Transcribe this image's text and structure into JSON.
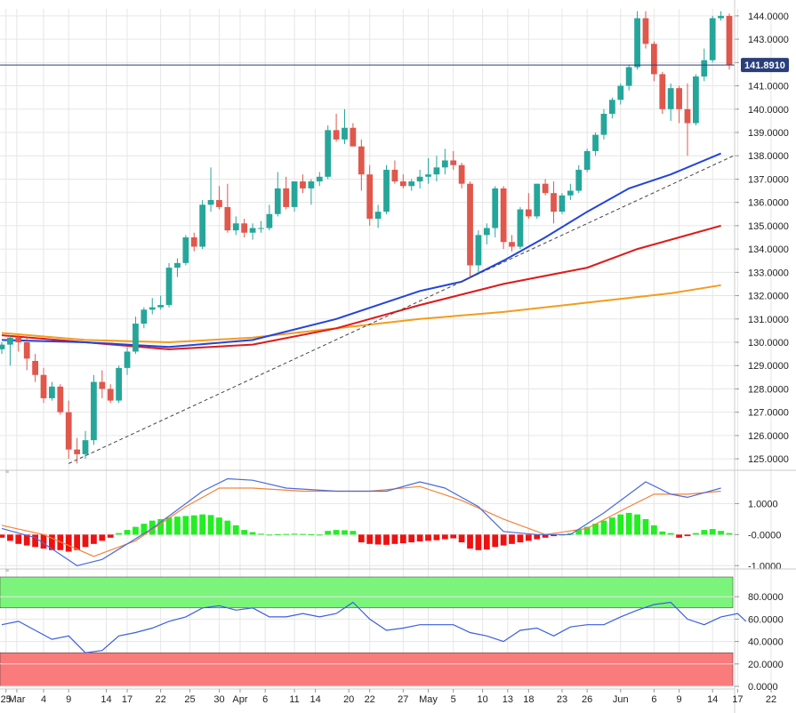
{
  "chart_data": [
    {
      "type": "candlestick",
      "name": "price",
      "y_ticks": [
        "125.0000",
        "126.0000",
        "127.0000",
        "128.0000",
        "129.0000",
        "130.0000",
        "131.0000",
        "132.0000",
        "133.0000",
        "134.0000",
        "135.0000",
        "136.0000",
        "137.0000",
        "138.0000",
        "139.0000",
        "140.0000",
        "141.0000",
        "142.0000",
        "143.0000",
        "144.0000"
      ],
      "ylim": [
        124.7,
        144.3
      ],
      "current_price": 141.891,
      "current_price_label": "141.8910",
      "x_labels": [
        "25",
        "Mar",
        "4",
        "9",
        "14",
        "17",
        "22",
        "25",
        "30",
        "Apr",
        "6",
        "11",
        "14",
        "20",
        "22",
        "27",
        "May",
        "5",
        "10",
        "13",
        "18",
        "23",
        "26",
        "Jun",
        "6",
        "9",
        "14",
        "17",
        "22"
      ],
      "candles": [
        [
          129.7,
          130.0,
          129.5,
          129.9
        ],
        [
          129.9,
          130.3,
          129.0,
          130.2
        ],
        [
          130.2,
          130.3,
          129.6,
          130.0
        ],
        [
          130.0,
          130.2,
          128.8,
          129.3
        ],
        [
          129.2,
          129.5,
          128.3,
          128.6
        ],
        [
          128.6,
          128.9,
          127.4,
          127.6
        ],
        [
          127.6,
          128.3,
          127.5,
          128.1
        ],
        [
          128.1,
          128.2,
          126.9,
          127.0
        ],
        [
          127.0,
          127.5,
          125.0,
          125.4
        ],
        [
          125.4,
          125.9,
          124.8,
          125.2
        ],
        [
          125.2,
          126.2,
          125.0,
          125.8
        ],
        [
          125.8,
          128.6,
          125.6,
          128.3
        ],
        [
          128.3,
          128.8,
          127.6,
          128.0
        ],
        [
          128.0,
          128.2,
          127.4,
          127.5
        ],
        [
          127.5,
          129.0,
          127.4,
          128.9
        ],
        [
          128.9,
          129.8,
          128.6,
          129.6
        ],
        [
          129.6,
          131.1,
          129.5,
          130.8
        ],
        [
          130.8,
          131.5,
          130.6,
          131.4
        ],
        [
          131.4,
          131.9,
          131.2,
          131.5
        ],
        [
          131.5,
          132.0,
          131.4,
          131.6
        ],
        [
          131.6,
          133.4,
          131.5,
          133.2
        ],
        [
          133.2,
          133.6,
          132.8,
          133.4
        ],
        [
          133.4,
          134.6,
          133.3,
          134.5
        ],
        [
          134.5,
          134.7,
          133.9,
          134.1
        ],
        [
          134.1,
          136.1,
          134.0,
          135.9
        ],
        [
          135.9,
          137.5,
          135.6,
          136.1
        ],
        [
          136.1,
          136.7,
          135.7,
          135.8
        ],
        [
          135.8,
          136.8,
          134.7,
          134.8
        ],
        [
          134.8,
          135.4,
          134.6,
          135.1
        ],
        [
          135.1,
          135.3,
          134.5,
          134.7
        ],
        [
          134.7,
          135.1,
          134.4,
          134.9
        ],
        [
          134.9,
          135.2,
          134.7,
          134.9
        ],
        [
          134.9,
          135.9,
          134.8,
          135.5
        ],
        [
          135.5,
          137.3,
          135.4,
          136.6
        ],
        [
          136.6,
          137.1,
          135.7,
          135.8
        ],
        [
          135.8,
          136.9,
          135.6,
          136.9
        ],
        [
          136.9,
          137.2,
          136.4,
          136.6
        ],
        [
          136.6,
          137.0,
          135.9,
          136.9
        ],
        [
          136.9,
          137.3,
          136.7,
          137.1
        ],
        [
          137.1,
          139.3,
          137.0,
          139.1
        ],
        [
          139.1,
          139.8,
          138.6,
          138.7
        ],
        [
          138.7,
          140.0,
          138.5,
          139.2
        ],
        [
          139.2,
          139.4,
          138.5,
          138.4
        ],
        [
          138.4,
          138.7,
          136.5,
          137.2
        ],
        [
          137.2,
          137.6,
          135.0,
          135.3
        ],
        [
          135.3,
          135.9,
          134.9,
          135.6
        ],
        [
          135.6,
          137.6,
          135.5,
          137.4
        ],
        [
          137.4,
          137.8,
          136.8,
          136.9
        ],
        [
          136.9,
          137.2,
          136.6,
          136.7
        ],
        [
          136.7,
          137.0,
          136.5,
          136.9
        ],
        [
          136.9,
          137.4,
          136.6,
          137.1
        ],
        [
          137.1,
          137.9,
          136.8,
          137.2
        ],
        [
          137.2,
          138.0,
          136.9,
          137.5
        ],
        [
          137.5,
          138.3,
          137.2,
          137.8
        ],
        [
          137.8,
          138.2,
          137.4,
          137.6
        ],
        [
          137.6,
          137.7,
          136.6,
          136.8
        ],
        [
          136.8,
          136.9,
          132.8,
          133.3
        ],
        [
          133.3,
          134.8,
          133.0,
          134.6
        ],
        [
          134.6,
          135.1,
          134.2,
          134.9
        ],
        [
          134.9,
          136.7,
          134.5,
          136.6
        ],
        [
          136.6,
          136.7,
          134.0,
          134.3
        ],
        [
          134.3,
          134.6,
          133.9,
          134.1
        ],
        [
          134.1,
          135.8,
          134.0,
          135.7
        ],
        [
          135.7,
          136.4,
          135.3,
          135.4
        ],
        [
          135.4,
          136.8,
          135.3,
          136.8
        ],
        [
          136.8,
          137.0,
          136.3,
          136.4
        ],
        [
          136.4,
          136.9,
          135.1,
          135.6
        ],
        [
          135.6,
          136.4,
          135.5,
          136.3
        ],
        [
          136.3,
          136.8,
          136.1,
          136.5
        ],
        [
          136.5,
          137.6,
          136.4,
          137.4
        ],
        [
          137.4,
          138.3,
          137.3,
          138.2
        ],
        [
          138.2,
          139.0,
          138.0,
          138.9
        ],
        [
          138.9,
          140.0,
          138.7,
          139.8
        ],
        [
          139.8,
          140.5,
          139.6,
          140.4
        ],
        [
          140.4,
          141.1,
          140.2,
          141.0
        ],
        [
          141.0,
          141.9,
          140.8,
          141.8
        ],
        [
          141.8,
          144.2,
          141.7,
          143.9
        ],
        [
          143.9,
          144.2,
          142.6,
          142.8
        ],
        [
          142.8,
          142.9,
          141.2,
          141.5
        ],
        [
          141.5,
          141.6,
          139.8,
          140.0
        ],
        [
          140.0,
          141.1,
          139.5,
          140.9
        ],
        [
          140.9,
          141.0,
          139.4,
          140.0
        ],
        [
          140.0,
          141.1,
          138.0,
          139.4
        ],
        [
          139.4,
          141.5,
          139.3,
          141.4
        ],
        [
          141.4,
          142.6,
          141.2,
          142.1
        ],
        [
          142.1,
          144.0,
          142.0,
          143.9
        ],
        [
          143.9,
          144.2,
          143.8,
          144.0
        ],
        [
          144.0,
          144.1,
          141.7,
          141.891
        ]
      ],
      "sma_blue": [
        [
          0,
          130.1
        ],
        [
          10,
          130.0
        ],
        [
          20,
          129.8
        ],
        [
          30,
          130.1
        ],
        [
          40,
          131.0
        ],
        [
          50,
          132.2
        ],
        [
          55,
          132.6
        ],
        [
          60,
          133.5
        ],
        [
          65,
          134.5
        ],
        [
          70,
          135.6
        ],
        [
          75,
          136.6
        ],
        [
          80,
          137.2
        ],
        [
          86,
          138.1
        ]
      ],
      "sma_red": [
        [
          0,
          130.3
        ],
        [
          10,
          130.0
        ],
        [
          20,
          129.7
        ],
        [
          30,
          129.9
        ],
        [
          40,
          130.6
        ],
        [
          50,
          131.6
        ],
        [
          60,
          132.5
        ],
        [
          70,
          133.2
        ],
        [
          76,
          134.0
        ],
        [
          82,
          134.6
        ],
        [
          86,
          135.0
        ]
      ],
      "sma_orange": [
        [
          0,
          130.4
        ],
        [
          10,
          130.1
        ],
        [
          20,
          130.0
        ],
        [
          30,
          130.2
        ],
        [
          40,
          130.6
        ],
        [
          50,
          131.0
        ],
        [
          60,
          131.3
        ],
        [
          70,
          131.7
        ],
        [
          80,
          132.1
        ],
        [
          86,
          132.45
        ]
      ],
      "trendline": [
        [
          8,
          124.8
        ],
        [
          86,
          137.9
        ]
      ]
    },
    {
      "type": "macd",
      "name": "macd-panel",
      "y_ticks": [
        "1.0000",
        "-0.0000",
        "-1.0000"
      ],
      "ylim": [
        -1.05,
        1.9
      ],
      "macd_line": [
        [
          0,
          0.2
        ],
        [
          4,
          -0.1
        ],
        [
          9,
          -1.0
        ],
        [
          12,
          -0.8
        ],
        [
          18,
          0.2
        ],
        [
          24,
          1.4
        ],
        [
          27,
          1.8
        ],
        [
          30,
          1.75
        ],
        [
          34,
          1.5
        ],
        [
          40,
          1.4
        ],
        [
          46,
          1.4
        ],
        [
          50,
          1.7
        ],
        [
          53,
          1.5
        ],
        [
          57,
          0.9
        ],
        [
          60,
          0.1
        ],
        [
          64,
          0.0
        ],
        [
          68,
          0.0
        ],
        [
          72,
          0.7
        ],
        [
          77,
          1.7
        ],
        [
          80,
          1.3
        ],
        [
          82,
          1.2
        ],
        [
          86,
          1.5
        ]
      ],
      "signal_line": [
        [
          0,
          0.3
        ],
        [
          5,
          0.0
        ],
        [
          11,
          -0.7
        ],
        [
          16,
          -0.2
        ],
        [
          22,
          0.9
        ],
        [
          26,
          1.5
        ],
        [
          30,
          1.5
        ],
        [
          36,
          1.4
        ],
        [
          44,
          1.4
        ],
        [
          50,
          1.55
        ],
        [
          55,
          1.1
        ],
        [
          60,
          0.5
        ],
        [
          65,
          0.0
        ],
        [
          70,
          0.2
        ],
        [
          75,
          0.9
        ],
        [
          78,
          1.3
        ],
        [
          82,
          1.3
        ],
        [
          86,
          1.4
        ]
      ],
      "histogram": [
        -0.1,
        -0.2,
        -0.3,
        -0.35,
        -0.4,
        -0.45,
        -0.5,
        -0.5,
        -0.55,
        -0.5,
        -0.4,
        -0.3,
        -0.2,
        -0.1,
        0.05,
        0.15,
        0.25,
        0.35,
        0.45,
        0.5,
        0.55,
        0.58,
        0.6,
        0.62,
        0.65,
        0.63,
        0.55,
        0.45,
        0.3,
        0.15,
        0.08,
        0.03,
        0.0,
        0.01,
        0.02,
        0.03,
        0.02,
        0.01,
        0.0,
        0.12,
        0.15,
        0.14,
        0.12,
        -0.25,
        -0.3,
        -0.32,
        -0.33,
        -0.3,
        -0.28,
        -0.25,
        -0.22,
        -0.2,
        -0.18,
        -0.15,
        -0.12,
        -0.25,
        -0.45,
        -0.5,
        -0.48,
        -0.4,
        -0.35,
        -0.3,
        -0.25,
        -0.2,
        -0.15,
        -0.1,
        -0.05,
        0.0,
        0.05,
        0.15,
        0.25,
        0.35,
        0.45,
        0.55,
        0.65,
        0.7,
        0.65,
        0.5,
        0.3,
        0.1,
        0.05,
        -0.1,
        -0.05,
        0.05,
        0.15,
        0.18,
        0.12,
        0.05
      ]
    },
    {
      "type": "line",
      "name": "rsi-panel",
      "y_ticks": [
        "0.0000",
        "20.0000",
        "40.0000",
        "60.0000",
        "80.0000"
      ],
      "ylim": [
        0,
        100
      ],
      "overbought": [
        70,
        100
      ],
      "oversold": [
        0,
        30
      ],
      "rsi": [
        [
          0,
          55
        ],
        [
          2,
          58
        ],
        [
          4,
          50
        ],
        [
          6,
          42
        ],
        [
          8,
          45
        ],
        [
          10,
          30
        ],
        [
          12,
          32
        ],
        [
          14,
          45
        ],
        [
          16,
          48
        ],
        [
          18,
          52
        ],
        [
          20,
          58
        ],
        [
          22,
          62
        ],
        [
          24,
          70
        ],
        [
          26,
          72
        ],
        [
          28,
          68
        ],
        [
          30,
          70
        ],
        [
          32,
          62
        ],
        [
          34,
          62
        ],
        [
          36,
          65
        ],
        [
          38,
          62
        ],
        [
          40,
          65
        ],
        [
          42,
          75
        ],
        [
          44,
          60
        ],
        [
          46,
          50
        ],
        [
          48,
          52
        ],
        [
          50,
          55
        ],
        [
          52,
          55
        ],
        [
          54,
          55
        ],
        [
          56,
          48
        ],
        [
          58,
          45
        ],
        [
          60,
          40
        ],
        [
          62,
          50
        ],
        [
          64,
          52
        ],
        [
          66,
          45
        ],
        [
          68,
          53
        ],
        [
          70,
          55
        ],
        [
          72,
          55
        ],
        [
          74,
          62
        ],
        [
          76,
          68
        ],
        [
          78,
          73
        ],
        [
          80,
          75
        ],
        [
          82,
          60
        ],
        [
          84,
          55
        ],
        [
          86,
          62
        ],
        [
          88,
          65
        ],
        [
          89,
          58
        ]
      ]
    }
  ],
  "colors": {
    "up": "#26a69a",
    "down": "#e0574c",
    "sma_blue": "#2244dd",
    "sma_red": "#e01919",
    "sma_orange": "#f39c1d",
    "macd_line": "#4a6bdc",
    "signal_line": "#f0843c",
    "hist_up": "#22ee22",
    "hist_down": "#ee1111",
    "overbought": "#7cf47c",
    "oversold": "#f97b7b",
    "price_line": "#2a3f7a"
  }
}
